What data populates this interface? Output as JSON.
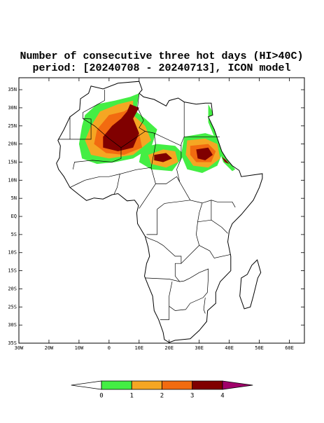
{
  "map": {
    "title": "Number of consecutive three hot days (HI>40C)",
    "subtitle": "period: [20240708 - 20240713], ICON model",
    "xlim": [
      -30,
      65
    ],
    "ylim": [
      -35,
      38.3
    ],
    "xticks": [
      {
        "value": -30,
        "label": "30W"
      },
      {
        "value": -20,
        "label": "20W"
      },
      {
        "value": -10,
        "label": "10W"
      },
      0,
      {
        "value": 10,
        "label": "10E"
      },
      {
        "value": 20,
        "label": "20E"
      },
      {
        "value": 30,
        "label": "30E"
      },
      {
        "value": 40,
        "label": "40E"
      },
      {
        "value": 50,
        "label": "50E"
      },
      {
        "value": 60,
        "label": "60E"
      }
    ],
    "yticks": [
      {
        "value": 35,
        "label": "35N"
      },
      {
        "value": 30,
        "label": "30N"
      },
      {
        "value": 25,
        "label": "25N"
      },
      {
        "value": 20,
        "label": "20N"
      },
      {
        "value": 15,
        "label": "15N"
      },
      {
        "value": 10,
        "label": "10N"
      },
      {
        "value": 5,
        "label": "5N"
      },
      {
        "value": 0,
        "label": "EQ"
      },
      {
        "value": -5,
        "label": "5S"
      },
      {
        "value": -10,
        "label": "10S"
      },
      {
        "value": -15,
        "label": "15S"
      },
      {
        "value": -20,
        "label": "20S"
      },
      {
        "value": -25,
        "label": "25S"
      },
      {
        "value": -30,
        "label": "30S"
      },
      {
        "value": -35,
        "label": "35S"
      }
    ],
    "colorbar": {
      "levels": [
        0,
        1,
        2,
        3,
        4
      ],
      "colors": [
        "#ffffff",
        "#44ee44",
        "#f5a623",
        "#f26b10",
        "#800000",
        "#a0006a"
      ]
    }
  }
}
